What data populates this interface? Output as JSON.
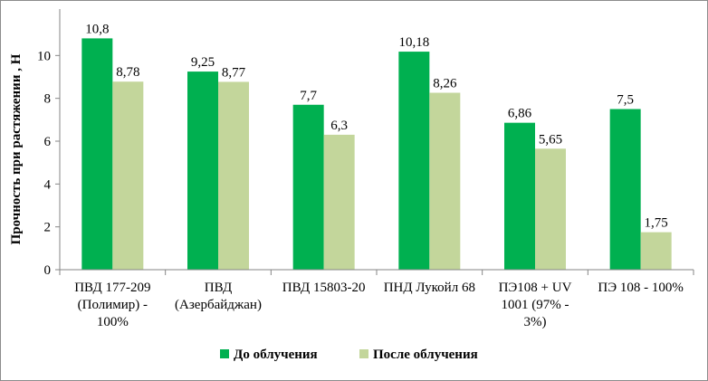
{
  "chart_data": {
    "type": "bar",
    "title": "",
    "xlabel": "",
    "ylabel": "Прочность при растяжении , Н",
    "ylim": [
      0,
      12
    ],
    "yticks": [
      0,
      2,
      4,
      6,
      8,
      10
    ],
    "categories": [
      [
        "ПВД 177-209",
        "(Полимир) -",
        "100%"
      ],
      [
        "ПВД",
        "(Азербайджан)"
      ],
      [
        "ПВД 15803-20"
      ],
      [
        "ПНД Лукойл 68"
      ],
      [
        "ПЭ108 + UV",
        "1001 (97% -",
        "3%)"
      ],
      [
        "ПЭ 108 - 100%"
      ]
    ],
    "series": [
      {
        "name": "До облучения",
        "color": "#00b050",
        "values": [
          10.8,
          9.25,
          7.7,
          10.18,
          6.86,
          7.5
        ],
        "labels": [
          "10,8",
          "9,25",
          "7,7",
          "10,18",
          "6,86",
          "7,5"
        ]
      },
      {
        "name": "После облучения",
        "color": "#c3d69b",
        "values": [
          8.78,
          8.77,
          6.3,
          8.26,
          5.65,
          1.75
        ],
        "labels": [
          "8,78",
          "8,77",
          "6,3",
          "8,26",
          "5,65",
          "1,75"
        ]
      }
    ],
    "legend_position": "bottom"
  }
}
